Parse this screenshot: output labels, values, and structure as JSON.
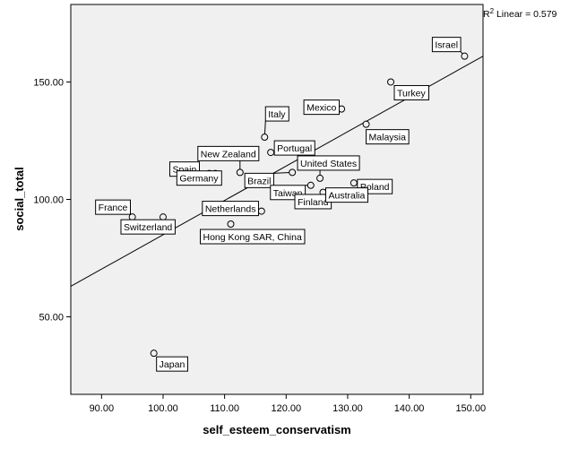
{
  "chart_data": {
    "type": "scatter",
    "xlabel": "self_esteem_conservatism",
    "ylabel": "social_total",
    "xlim": [
      85,
      152
    ],
    "ylim": [
      17,
      183
    ],
    "x_ticks": [
      "90.00",
      "100.00",
      "110.00",
      "120.00",
      "130.00",
      "140.00",
      "150.00"
    ],
    "y_ticks": [
      "50.00",
      "100.00",
      "150.00"
    ],
    "grid": false,
    "background": "#f0f0f0",
    "fit_line": {
      "label": "R² Linear = 0.579",
      "r2_prefix": "R",
      "r2_sup": "2",
      "r2_suffix": " Linear = 0.579",
      "x": [
        85,
        152
      ],
      "y": [
        63,
        161
      ]
    },
    "points": [
      {
        "label": "Israel",
        "x": 149,
        "y": 161
      },
      {
        "label": "Turkey",
        "x": 137,
        "y": 150
      },
      {
        "label": "Mexico",
        "x": 129,
        "y": 138.5
      },
      {
        "label": "Malaysia",
        "x": 133,
        "y": 132
      },
      {
        "label": "Italy",
        "x": 116.5,
        "y": 126.5
      },
      {
        "label": "Portugal",
        "x": 117.5,
        "y": 120
      },
      {
        "label": "New Zealand",
        "x": 112.5,
        "y": 111.5
      },
      {
        "label": "Spain",
        "x": 107.5,
        "y": 111
      },
      {
        "label": "Germany",
        "x": 108.5,
        "y": 111
      },
      {
        "label": "Brazil",
        "x": 121,
        "y": 111.5
      },
      {
        "label": "United States",
        "x": 125.5,
        "y": 109
      },
      {
        "label": "Taiwan",
        "x": 124,
        "y": 106
      },
      {
        "label": "Poland",
        "x": 131,
        "y": 107
      },
      {
        "label": "Finland",
        "x": 122,
        "y": 102.5
      },
      {
        "label": "Australia",
        "x": 126,
        "y": 103
      },
      {
        "label": "Netherlands",
        "x": 116,
        "y": 95
      },
      {
        "label": "France",
        "x": 95,
        "y": 92.5
      },
      {
        "label": "Switzerland",
        "x": 100,
        "y": 92.5
      },
      {
        "label": "Hong Kong SAR, China",
        "x": 111,
        "y": 89.5
      },
      {
        "label": "Japan",
        "x": 98.5,
        "y": 34.5
      }
    ]
  }
}
